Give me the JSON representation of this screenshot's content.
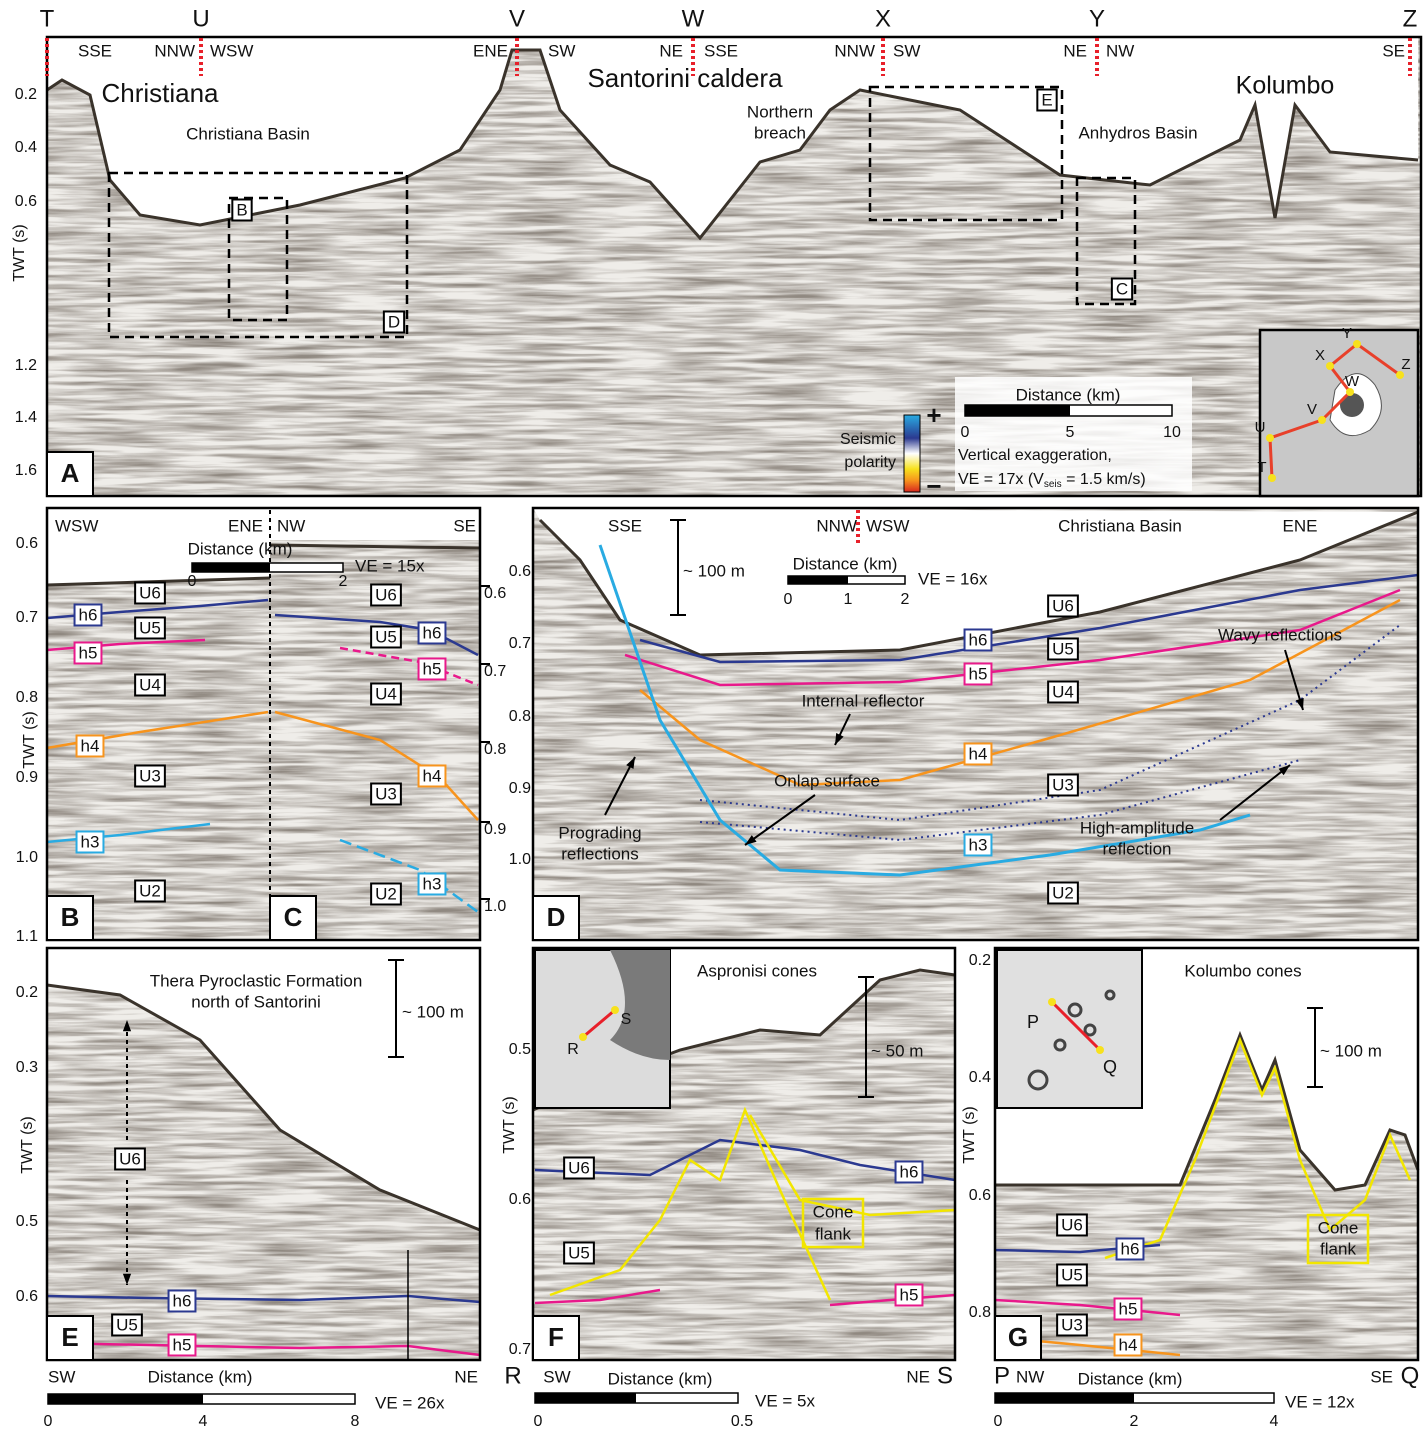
{
  "panel_a": {
    "letter": "A",
    "sections": [
      "T",
      "U",
      "V",
      "W",
      "X",
      "Y",
      "Z"
    ],
    "directions": [
      "SSE",
      "NNW",
      "WSW",
      "ENE",
      "SW",
      "NE",
      "SSE",
      "NNW",
      "SW",
      "NE",
      "NW",
      "SE"
    ],
    "labels": [
      "Christiana",
      "Christiana Basin",
      "Santorini caldera",
      "Northern",
      "breach",
      "Anhydros Basin",
      "Kolumbo"
    ],
    "boxes": [
      "B",
      "D",
      "E",
      "C"
    ],
    "y_axis": {
      "title": "TWT (s)",
      "ticks": [
        "0.2",
        "0.4",
        "0.6",
        "1.2",
        "1.4",
        "1.6"
      ]
    },
    "polarity": {
      "title": [
        "Seismic",
        "polarity"
      ],
      "plus": "+",
      "minus": "−"
    },
    "scale": {
      "title": "Distance (km)",
      "ticks": [
        "0",
        "5",
        "10"
      ]
    },
    "ve": {
      "line1": "Vertical exaggeration,",
      "line2a": "VE = 17x (V",
      "sub": "seis",
      "line2b": " = 1.5 km/s)"
    },
    "inset_points": [
      "Y",
      "X",
      "Z",
      "W",
      "V",
      "U",
      "T"
    ]
  },
  "panel_bc": {
    "letters": [
      "B",
      "C"
    ],
    "directions": [
      "WSW",
      "ENE",
      "NW",
      "SE"
    ],
    "scale": {
      "title": "Distance (km)",
      "ticks": [
        "0",
        "2"
      ],
      "ve": "VE = 15x"
    },
    "left_axis": {
      "title": "TWT (s)",
      "ticks": [
        "0.6",
        "0.7",
        "0.8",
        "0.9",
        "1.0",
        "1.1"
      ]
    },
    "right_ticks": [
      "0.6",
      "0.7",
      "0.8",
      "0.9",
      "1.0"
    ],
    "units_b": [
      "U6",
      "U5",
      "U4",
      "U3",
      "U2"
    ],
    "horizons_b": [
      "h6",
      "h5",
      "h4",
      "h3"
    ],
    "units_c": [
      "U6",
      "U5",
      "U4",
      "U3",
      "U2"
    ],
    "horizons_c": [
      "h6",
      "h5",
      "h4",
      "h3"
    ]
  },
  "panel_d": {
    "letter": "D",
    "directions": [
      "SSE",
      "NNW",
      "WSW",
      "ENE"
    ],
    "title": "Christiana Basin",
    "height_bar": "~ 100 m",
    "scale": {
      "title": "Distance (km)",
      "ticks": [
        "0",
        "1",
        "2"
      ],
      "ve": "VE = 16x"
    },
    "ticks": [
      "0.6",
      "0.7",
      "0.8",
      "0.9",
      "1.0"
    ],
    "units": [
      "U6",
      "U5",
      "U4",
      "U3",
      "U2"
    ],
    "horizons": [
      "h6",
      "h5",
      "h4",
      "h3"
    ],
    "annotations": {
      "internal": "Internal reflector",
      "onlap": "Onlap surface",
      "prograding": [
        "Prograding",
        "reflections"
      ],
      "wavy": "Wavy reflections",
      "high_amp": [
        "High-amplitude",
        "reflection"
      ]
    }
  },
  "panel_e": {
    "letter": "E",
    "title": [
      "Thera Pyroclastic Formation",
      "north of Santorini"
    ],
    "height_bar": "~ 100 m",
    "axis": {
      "title": "TWT (s)",
      "ticks": [
        "0.2",
        "0.3",
        "0.5",
        "0.6"
      ]
    },
    "units": [
      "U6",
      "U5"
    ],
    "horizons": [
      "h6",
      "h5"
    ],
    "directions": [
      "SW",
      "NE"
    ],
    "scale": {
      "title": "Distance (km)",
      "ticks": [
        "0",
        "4",
        "8"
      ],
      "ve": "VE = 26x"
    }
  },
  "panel_f": {
    "letter": "F",
    "title": "Aspronisi cones",
    "height_bar": "~ 50 m",
    "axis": {
      "title": "TWT (s)",
      "ticks": [
        "0.5",
        "0.6",
        "0.7"
      ]
    },
    "units": [
      "U6",
      "U5"
    ],
    "horizons": [
      "h6",
      "h5"
    ],
    "cone_flank": [
      "Cone",
      "flank"
    ],
    "ends": [
      "R",
      "S"
    ],
    "directions": [
      "SW",
      "NE"
    ],
    "scale": {
      "title": "Distance (km)",
      "ticks": [
        "0",
        "0.5"
      ],
      "ve": "VE = 5x"
    },
    "inset_points": [
      "R",
      "S"
    ]
  },
  "panel_g": {
    "letter": "G",
    "title": "Kolumbo cones",
    "height_bar": "~ 100 m",
    "axis": {
      "title": "TWT (s)",
      "ticks": [
        "0.2",
        "0.4",
        "0.6",
        "0.8"
      ]
    },
    "units": [
      "U6",
      "U5",
      "U3"
    ],
    "horizons": [
      "h6",
      "h5",
      "h4"
    ],
    "cone_flank": [
      "Cone",
      "flank"
    ],
    "ends": [
      "P",
      "Q"
    ],
    "directions": [
      "NW",
      "SE"
    ],
    "scale": {
      "title": "Distance (km)",
      "ticks": [
        "0",
        "2",
        "4"
      ],
      "ve": "VE = 12x"
    },
    "inset_points": [
      "P",
      "Q"
    ]
  }
}
